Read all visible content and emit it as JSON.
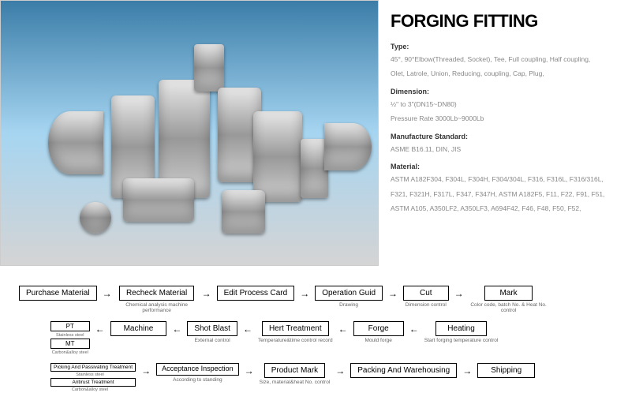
{
  "title": "FORGING FITTING",
  "sections": {
    "type": {
      "label": "Type:",
      "line1": "45°, 90°Elbow(Threaded, Socket), Tee, Full coupling, Half coupling,",
      "line2": "Olet, Latrole, Union, Reducing, coupling, Cap, Plug,"
    },
    "dimension": {
      "label": "Dimension:",
      "line1": "½\" to 3\"(DN15~DN80)",
      "line2": "Pressure Rate 3000Lb~9000Lb"
    },
    "standard": {
      "label": "Manufacture Standard:",
      "line1": "ASME B16.11, DIN, JIS"
    },
    "material": {
      "label": "Material:",
      "line1": "ASTM A182F304, F304L, F304H, F304/304L, F316, F316L, F316/316L,",
      "line2": "F321, F321H, F317L, F347, F347H, ASTM A182F5, F11, F22, F91, F51,",
      "line3": "ASTM A105, A350LF2, A350LF3, A694F42, F46, F48, F50, F52,"
    }
  },
  "flow": {
    "r1": {
      "n1": {
        "label": "Purchase Material",
        "sub": ""
      },
      "n2": {
        "label": "Recheck Material",
        "sub": "Chemical analysis machine performance"
      },
      "n3": {
        "label": "Edit Process Card",
        "sub": ""
      },
      "n4": {
        "label": "Operation Guid",
        "sub": "Drawing"
      },
      "n5": {
        "label": "Cut",
        "sub": "Dimension control"
      },
      "n6": {
        "label": "Mark",
        "sub": "Color code, batch No. & Heat No. control"
      }
    },
    "r2": {
      "pt": {
        "label": "PT",
        "sub": "Stainless steel"
      },
      "mt": {
        "label": "MT",
        "sub": "Carbon&alloy steel"
      },
      "n2": {
        "label": "Machine",
        "sub": ""
      },
      "n3": {
        "label": "Shot Blast",
        "sub": "External control"
      },
      "n4": {
        "label": "Hert Treatment",
        "sub": "Temperature&time control record"
      },
      "n5": {
        "label": "Forge",
        "sub": "Mould forge"
      },
      "n6": {
        "label": "Heating",
        "sub": "Start forging temperature control"
      }
    },
    "r3": {
      "s1": {
        "a": "Picking And Passivating Treatment",
        "asub": "Stainless steel",
        "b": "Antirust Treatment",
        "bsub": "Carbon&alloy steel"
      },
      "n2": {
        "label": "Acceptance Inspection",
        "sub": "According to standing"
      },
      "n3": {
        "label": "Product Mark",
        "sub": "Size, material&heat No. control"
      },
      "n4": {
        "label": "Packing And Warehousing",
        "sub": ""
      },
      "n5": {
        "label": "Shipping",
        "sub": ""
      }
    }
  },
  "colors": {
    "text_heading": "#000000",
    "text_label": "#333333",
    "text_body": "#888888",
    "border": "#000000"
  }
}
